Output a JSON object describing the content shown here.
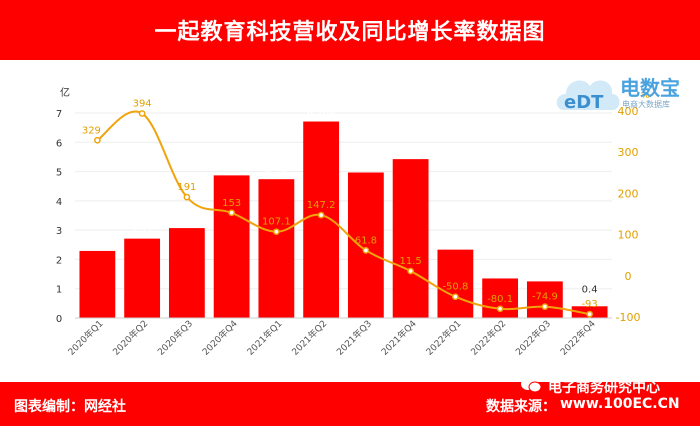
{
  "header": {
    "title": "一起教育科技营收及同比增长率数据图"
  },
  "footer": {
    "left": "图表编制：网经社",
    "right": "数据来源："
  },
  "watermark": {
    "name": "电子商务研究中心",
    "site": "www.100EC.CN"
  },
  "logo": {
    "main": "电数宝",
    "sub": "电商大数据库",
    "badge": "eDT"
  },
  "colors": {
    "bar": "#ff0000",
    "line": "#f0a30a",
    "header": "#ff0000"
  },
  "chart_data": {
    "type": "bar",
    "categories": [
      "2020年Q1",
      "2020年Q2",
      "2020年Q3",
      "2020年Q4",
      "2021年Q1",
      "2021年Q2",
      "2021年Q3",
      "2021年Q4",
      "2022年Q1",
      "2022年Q2",
      "2022年Q3",
      "2022年Q4"
    ],
    "left_axis": {
      "unit": "亿",
      "ylim": [
        0,
        7
      ],
      "ticks": [
        0,
        1,
        2,
        3,
        4,
        5,
        6,
        7
      ]
    },
    "right_axis": {
      "unit": "%",
      "ylim": [
        -100,
        400
      ],
      "ticks": [
        -100,
        0,
        100,
        200,
        300,
        400
      ]
    },
    "series": [
      {
        "type": "bar",
        "axis": "left",
        "values": [
          2.29,
          2.71,
          3.07,
          4.87,
          4.74,
          6.709,
          4.968,
          5.425,
          2.334,
          1.35,
          1.25,
          0.4
        ],
        "labels": [
          "2.29",
          "2.71",
          "3.07",
          "4.87",
          "4.74",
          "6.709",
          "4.968",
          "5.425",
          "2.334",
          "1.35",
          "1.25",
          "0.4"
        ]
      },
      {
        "type": "line",
        "axis": "right",
        "values": [
          329,
          394,
          191,
          153,
          107.1,
          147.2,
          61.8,
          11.5,
          -50.8,
          -80.1,
          -74.9,
          -93
        ],
        "labels": [
          "329",
          "394",
          "191",
          "153",
          "107.1",
          "147.2",
          "61.8",
          "11.5",
          "-50.8",
          "-80.1",
          "-74.9",
          "-93"
        ]
      }
    ],
    "grid": "horizontal",
    "legend": "none"
  }
}
